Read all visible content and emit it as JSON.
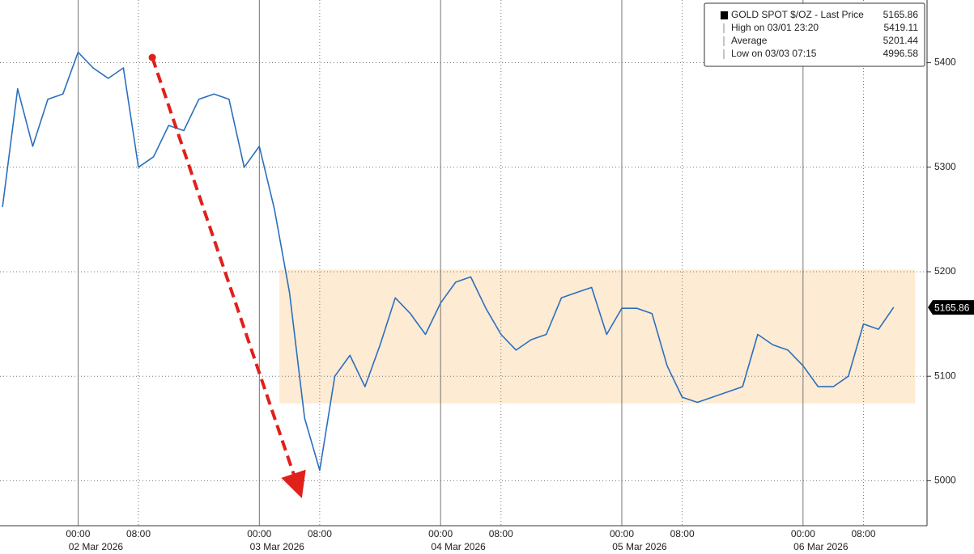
{
  "chart_data": {
    "type": "line",
    "x": [
      "2026-03-01T14:00",
      "2026-03-01T16:00",
      "2026-03-01T18:00",
      "2026-03-01T20:00",
      "2026-03-01T22:00",
      "2026-03-02T00:00",
      "2026-03-02T02:00",
      "2026-03-02T04:00",
      "2026-03-02T06:00",
      "2026-03-02T08:00",
      "2026-03-02T10:00",
      "2026-03-02T12:00",
      "2026-03-02T14:00",
      "2026-03-02T16:00",
      "2026-03-02T18:00",
      "2026-03-02T20:00",
      "2026-03-02T22:00",
      "2026-03-03T00:00",
      "2026-03-03T02:00",
      "2026-03-03T04:00",
      "2026-03-03T06:00",
      "2026-03-03T08:00",
      "2026-03-03T10:00",
      "2026-03-03T12:00",
      "2026-03-03T14:00",
      "2026-03-03T16:00",
      "2026-03-03T18:00",
      "2026-03-03T20:00",
      "2026-03-03T22:00",
      "2026-03-04T00:00",
      "2026-03-04T02:00",
      "2026-03-04T04:00",
      "2026-03-04T06:00",
      "2026-03-04T08:00",
      "2026-03-04T10:00",
      "2026-03-04T12:00",
      "2026-03-04T14:00",
      "2026-03-04T16:00",
      "2026-03-04T18:00",
      "2026-03-04T20:00",
      "2026-03-04T22:00",
      "2026-03-05T00:00",
      "2026-03-05T02:00",
      "2026-03-05T04:00",
      "2026-03-05T06:00",
      "2026-03-05T08:00",
      "2026-03-05T10:00",
      "2026-03-05T12:00",
      "2026-03-05T14:00",
      "2026-03-05T16:00",
      "2026-03-05T18:00",
      "2026-03-05T20:00",
      "2026-03-05T22:00",
      "2026-03-06T00:00",
      "2026-03-06T02:00",
      "2026-03-06T04:00",
      "2026-03-06T06:00",
      "2026-03-06T08:00",
      "2026-03-06T10:00",
      "2026-03-06T12:00"
    ],
    "series": [
      {
        "name": "GOLD SPOT $/OZ - Last Price",
        "color": "#2b6fbf",
        "values": [
          5262,
          5375,
          5320,
          5365,
          5370,
          5410,
          5395,
          5385,
          5395,
          5300,
          5310,
          5340,
          5335,
          5365,
          5370,
          5365,
          5300,
          5320,
          5260,
          5180,
          5060,
          5010,
          5100,
          5120,
          5090,
          5130,
          5175,
          5160,
          5140,
          5170,
          5190,
          5195,
          5165,
          5140,
          5125,
          5135,
          5140,
          5175,
          5180,
          5185,
          5140,
          5165,
          5165,
          5160,
          5110,
          5080,
          5075,
          5080,
          5085,
          5090,
          5140,
          5130,
          5125,
          5110,
          5090,
          5090,
          5100,
          5150,
          5145,
          5166
        ]
      }
    ],
    "last_price": 5165.86,
    "legend": [
      {
        "name": "GOLD SPOT $/OZ - Last Price",
        "value": 5165.86
      },
      {
        "name": "High on 03/01 23:20",
        "value": 5419.11
      },
      {
        "name": "Average",
        "value": 5201.44
      },
      {
        "name": "Low on 03/03 07:15",
        "value": 4996.58
      }
    ],
    "xlim": [
      "2026-03-01T13:40",
      "2026-03-06T16:25"
    ],
    "xticks": [
      {
        "value": "2026-03-02T00:00",
        "label": "00:00"
      },
      {
        "value": "2026-03-02T08:00",
        "label": "08:00"
      },
      {
        "value": "2026-03-03T00:00",
        "label": "00:00"
      },
      {
        "value": "2026-03-03T08:00",
        "label": "08:00"
      },
      {
        "value": "2026-03-04T00:00",
        "label": "00:00"
      },
      {
        "value": "2026-03-04T08:00",
        "label": "08:00"
      },
      {
        "value": "2026-03-05T00:00",
        "label": "00:00"
      },
      {
        "value": "2026-03-05T08:00",
        "label": "08:00"
      },
      {
        "value": "2026-03-06T00:00",
        "label": "00:00"
      },
      {
        "value": "2026-03-06T08:00",
        "label": "08:00"
      }
    ],
    "xdates": [
      {
        "value": "2026-03-02T00:00",
        "label": "02 Mar 2026"
      },
      {
        "value": "2026-03-03T00:00",
        "label": "03 Mar 2026"
      },
      {
        "value": "2026-03-04T00:00",
        "label": "04 Mar 2026"
      },
      {
        "value": "2026-03-05T00:00",
        "label": "05 Mar 2026"
      },
      {
        "value": "2026-03-06T00:00",
        "label": "06 Mar 2026"
      }
    ],
    "ylim": [
      4957,
      5460
    ],
    "yticks": [
      5000,
      5100,
      5200,
      5300,
      5400
    ],
    "grid": true,
    "range_band": {
      "x": [
        "2026-03-03T02:40",
        "2026-03-06T14:50"
      ],
      "y": [
        5074,
        5202
      ],
      "color": "#fdebd3"
    },
    "annotation_arrow": {
      "x": [
        "2026-03-02T09:50",
        "2026-03-03T05:05"
      ],
      "y": [
        5405,
        4995
      ],
      "color": "#e0201b"
    },
    "legend_position": "upper right"
  }
}
